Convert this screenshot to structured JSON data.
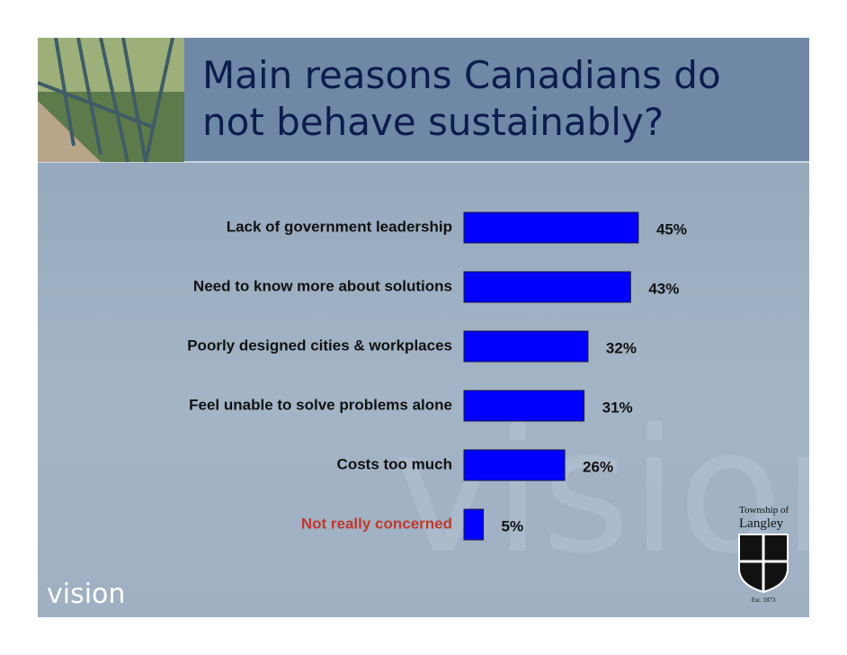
{
  "chart_data": {
    "type": "hbar",
    "title": "Main reasons Canadians do not behave sustainably?",
    "categories": [
      "Lack of government leadership",
      "Need to know more about solutions",
      "Poorly designed cities & workplaces",
      "Feel unable to solve problems alone",
      "Costs too much",
      "Not really concerned"
    ],
    "values": [
      45,
      43,
      32,
      31,
      26,
      5
    ],
    "value_labels": [
      "45%",
      "43%",
      "32%",
      "31%",
      "26%",
      "5%"
    ],
    "color": "#0000ff",
    "category_label_colors": [
      "#111111",
      "#111111",
      "#111111",
      "#111111",
      "#111111",
      "#c0392b"
    ],
    "xlim": [
      0,
      100
    ]
  },
  "branding": {
    "tagline": "vision",
    "logo_line1": "Township of",
    "logo_line2": "Langley",
    "established": "Est. 1873"
  }
}
